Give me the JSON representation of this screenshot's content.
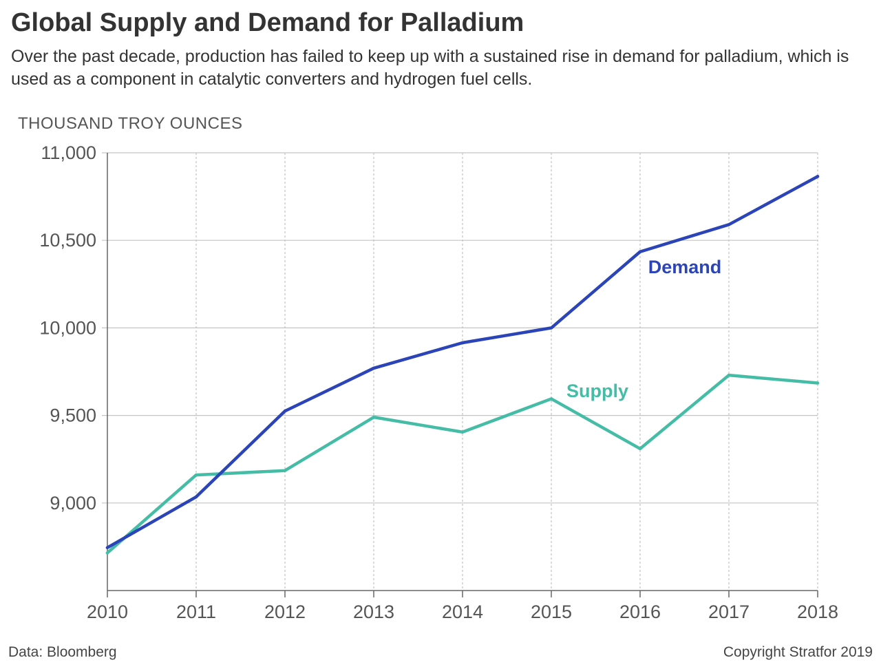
{
  "chart_data": {
    "type": "line",
    "title": "Global Supply and Demand for Palladium",
    "subtitle": "Over the past decade, production has failed to keep up with a sustained rise in demand for palladium, which is used as a component in catalytic converters and hydrogen fuel cells.",
    "xlabel": "",
    "ylabel": "THOUSAND TROY OUNCES",
    "x": [
      "2010",
      "2011",
      "2012",
      "2013",
      "2014",
      "2015",
      "2016",
      "2017",
      "2018"
    ],
    "ylim": [
      8500,
      11000
    ],
    "yticks": [
      9000,
      9500,
      10000,
      10500,
      11000
    ],
    "ytick_labels": [
      "9,000",
      "9,500",
      "10,000",
      "10,500",
      "11,000"
    ],
    "grid": {
      "horizontal": "solid",
      "vertical": "dotted"
    },
    "series": [
      {
        "name": "Demand",
        "color": "#2b44b8",
        "values": [
          8745,
          9035,
          9525,
          9770,
          9915,
          10000,
          10435,
          10590,
          10865
        ]
      },
      {
        "name": "Supply",
        "color": "#45bda6",
        "values": [
          8715,
          9160,
          9185,
          9490,
          9405,
          9595,
          9310,
          9730,
          9685
        ]
      }
    ]
  },
  "footer": {
    "source": "Data: Bloomberg",
    "copyright": "Copyright Stratfor 2019"
  }
}
